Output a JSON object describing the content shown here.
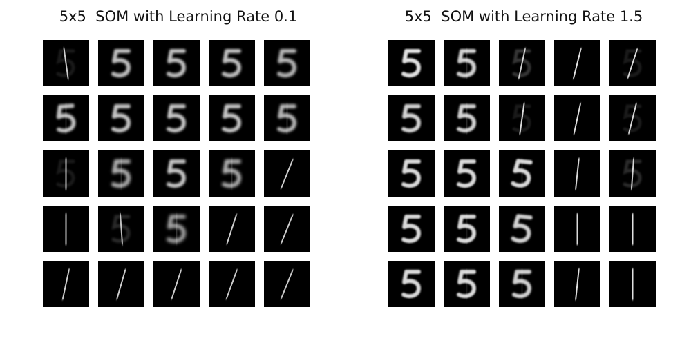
{
  "panels": [
    {
      "title": "5x5  SOM with Learning Rate 0.1",
      "grid": [
        [
          "1",
          "5",
          "5",
          "5",
          "5"
        ],
        [
          "5",
          "5",
          "5",
          "5",
          "5"
        ],
        [
          "1",
          "5",
          "5",
          "5",
          "1"
        ],
        [
          "1",
          "1",
          "5",
          "1",
          "1"
        ],
        [
          "1",
          "1",
          "1",
          "1",
          "1"
        ]
      ],
      "blur": [
        [
          0.6,
          0.8,
          0.8,
          0.8,
          0.9
        ],
        [
          0.7,
          0.7,
          0.7,
          0.7,
          0.9
        ],
        [
          0.6,
          1.0,
          0.7,
          1.0,
          0.5
        ],
        [
          0.5,
          0.7,
          1.2,
          0.5,
          0.5
        ],
        [
          0.5,
          0.5,
          0.6,
          0.6,
          0.6
        ]
      ],
      "ghost": [
        [
          0.3,
          0,
          0,
          0,
          0
        ],
        [
          0.4,
          0,
          0,
          0,
          0.5
        ],
        [
          0.3,
          0.6,
          0,
          0.6,
          0
        ],
        [
          0,
          0.5,
          0.8,
          0,
          0
        ],
        [
          0,
          0,
          0,
          0,
          0
        ]
      ],
      "slant": [
        [
          -8,
          0,
          0,
          0,
          0
        ],
        [
          -4,
          0,
          0,
          0,
          0
        ],
        [
          0,
          0,
          0,
          0,
          22
        ],
        [
          0,
          -4,
          0,
          18,
          22
        ],
        [
          12,
          16,
          18,
          20,
          22
        ]
      ]
    },
    {
      "title": "5x5  SOM with Learning Rate 1.5",
      "grid": [
        [
          "5",
          "5",
          "1",
          "1",
          "1"
        ],
        [
          "5",
          "5",
          "1",
          "1",
          "1"
        ],
        [
          "5",
          "5",
          "5",
          "1",
          "1"
        ],
        [
          "5",
          "5",
          "5",
          "1",
          "1"
        ],
        [
          "5",
          "5",
          "5",
          "1",
          "1"
        ]
      ],
      "blur": [
        [
          0.3,
          0.5,
          0.5,
          0.3,
          0.4
        ],
        [
          0.5,
          0.5,
          0.4,
          0.3,
          0.4
        ],
        [
          0.4,
          0.4,
          0.4,
          0.4,
          0.5
        ],
        [
          0.4,
          0.4,
          0.5,
          0.4,
          0.3
        ],
        [
          0.4,
          0.4,
          0.5,
          0.3,
          0.3
        ]
      ],
      "ghost": [
        [
          0,
          0.5,
          0.6,
          0,
          0.3
        ],
        [
          0,
          0.5,
          0.3,
          0,
          0.3
        ],
        [
          0,
          0,
          0.3,
          0,
          0.5
        ],
        [
          0,
          0.3,
          0,
          0,
          0
        ],
        [
          0,
          0.3,
          0.3,
          0,
          0
        ]
      ],
      "slant": [
        [
          0,
          0,
          12,
          14,
          18
        ],
        [
          0,
          0,
          8,
          12,
          14
        ],
        [
          0,
          0,
          6,
          6,
          4
        ],
        [
          0,
          0,
          6,
          0,
          0
        ],
        [
          0,
          0,
          0,
          6,
          0
        ]
      ]
    }
  ]
}
